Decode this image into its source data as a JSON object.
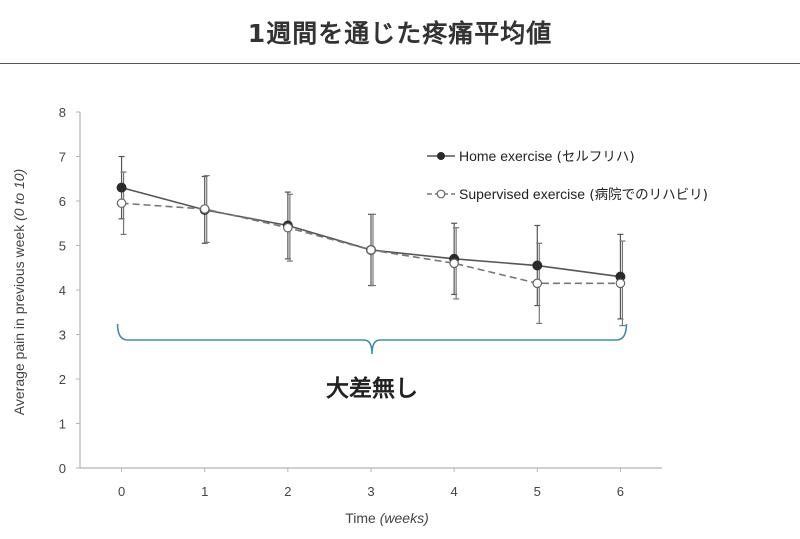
{
  "header": {
    "title": "1週間を通じた疼痛平均値"
  },
  "chart_data": {
    "type": "line",
    "title": "1週間を通じた疼痛平均値",
    "xlabel": "Time",
    "xlabel_italic": "(weeks)",
    "ylabel": "Average pain in previous week",
    "ylabel_italic": "(0 to 10)",
    "x": [
      0,
      1,
      2,
      3,
      4,
      5,
      6
    ],
    "xlim": [
      -0.5,
      6.5
    ],
    "ylim": [
      0,
      8
    ],
    "yticks": [
      0,
      1,
      2,
      3,
      4,
      5,
      6,
      7,
      8
    ],
    "grid": false,
    "legend_position": "top-right",
    "series": [
      {
        "name": "Home exercise",
        "name_note": "(セルフリハ)",
        "marker": "filled-circle",
        "line_style": "solid",
        "color": "#555555",
        "values": [
          6.3,
          5.8,
          5.45,
          4.9,
          4.7,
          4.55,
          4.3
        ],
        "error": [
          0.7,
          0.75,
          0.75,
          0.8,
          0.8,
          0.9,
          0.95
        ]
      },
      {
        "name": "Supervised exercise",
        "name_note": "(病院でのリハビリ)",
        "marker": "open-circle",
        "line_style": "dashed",
        "color": "#777777",
        "values": [
          5.95,
          5.82,
          5.4,
          4.9,
          4.6,
          4.15,
          4.15
        ],
        "error": [
          0.7,
          0.75,
          0.75,
          0.8,
          0.8,
          0.9,
          0.95
        ]
      }
    ],
    "annotation": {
      "text": "大差無し",
      "x_from": 0,
      "x_to": 6,
      "bracket_color": "#3a8fb0"
    }
  }
}
